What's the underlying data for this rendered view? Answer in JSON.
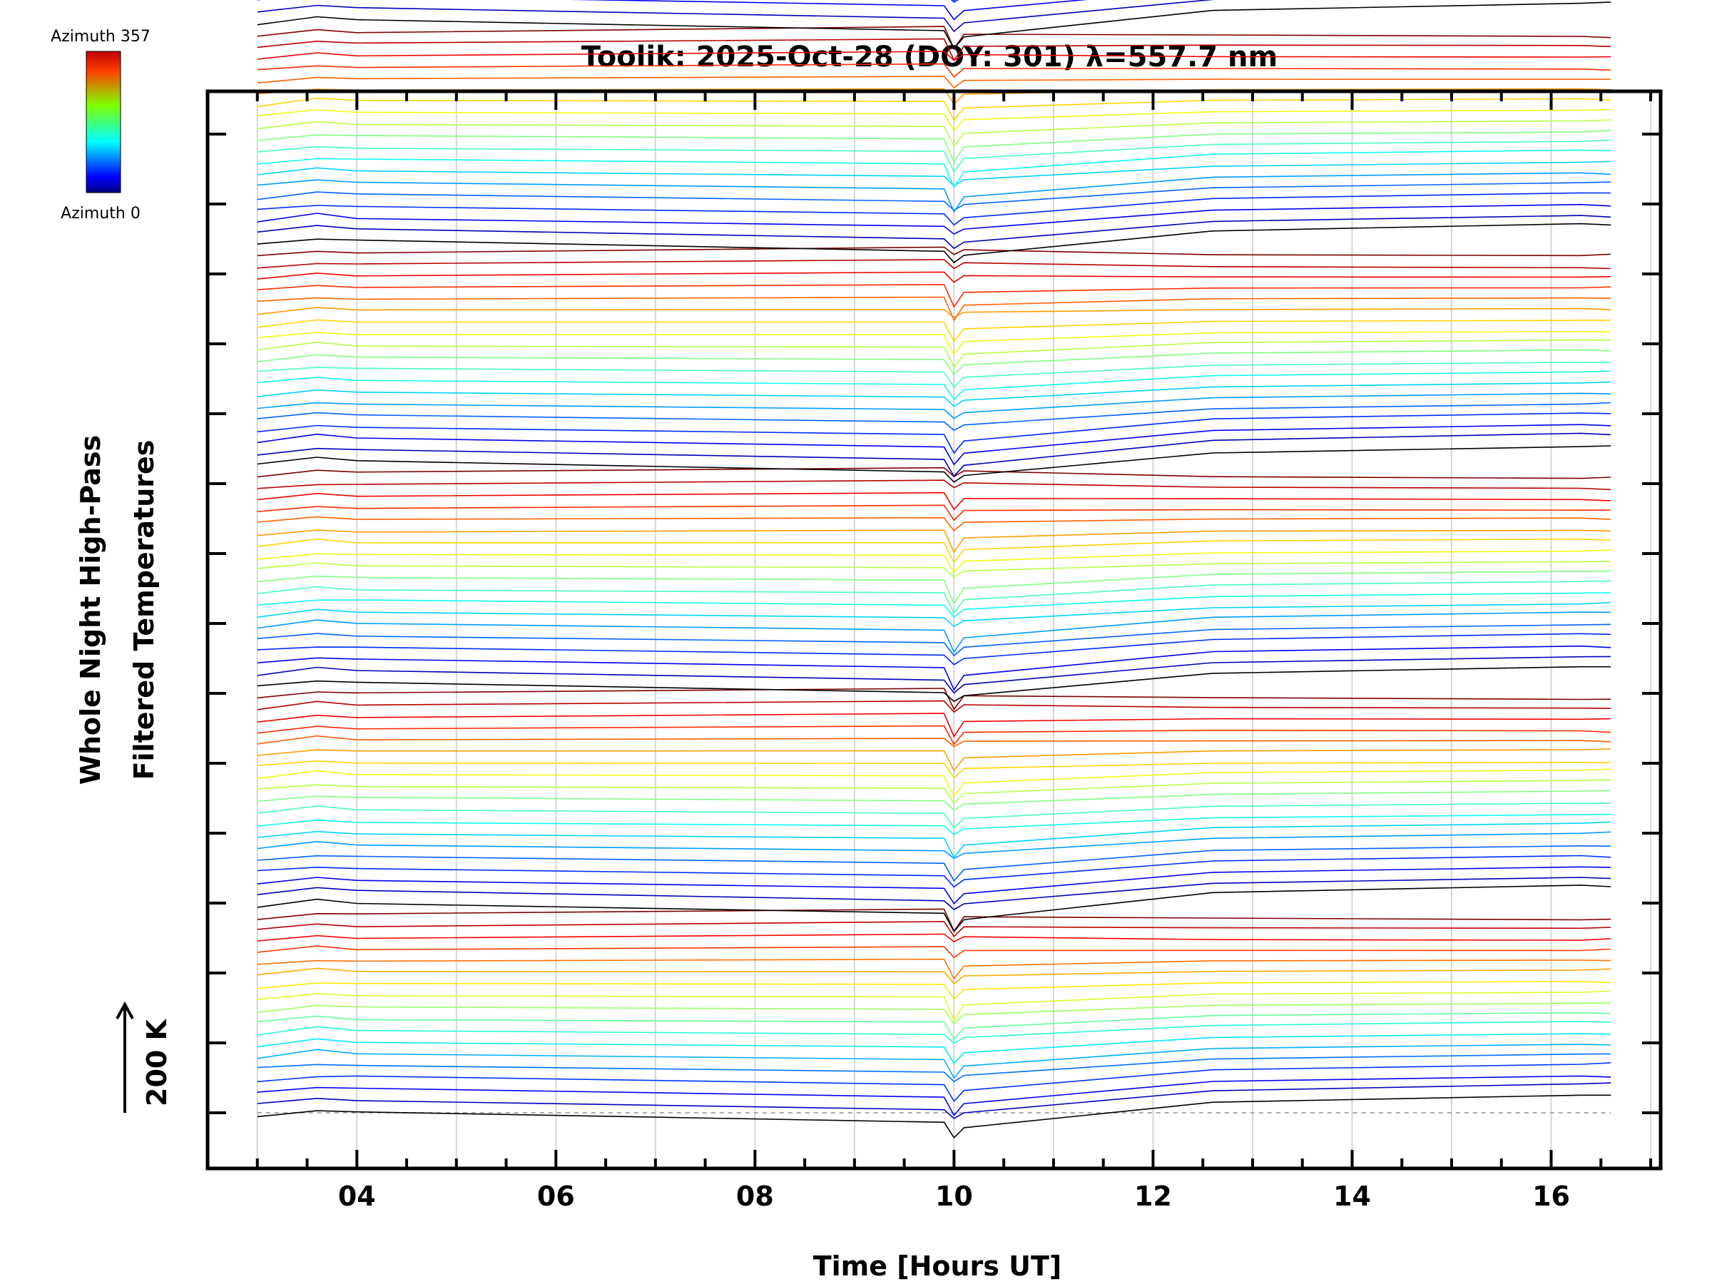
{
  "chart_data": {
    "type": "line",
    "title": "Toolik: 2025-Oct-28 (DOY: 301) λ=557.7 nm",
    "xlabel": "Time [Hours UT]",
    "ylabel_line1": "Whole Night High-Pass",
    "ylabel_line2": "Filtered Temperatures",
    "scale_label": "200 K",
    "xlim": [
      2.5,
      17.1
    ],
    "x_ticks": [
      4,
      6,
      8,
      10,
      12,
      14,
      16
    ],
    "x_tick_labels": [
      "04",
      "06",
      "08",
      "10",
      "12",
      "14",
      "16"
    ],
    "x_minor_step": 0.5,
    "colorbar": {
      "top_label": "Azimuth 357",
      "bottom_label": "Azimuth 0"
    },
    "times": [
      3.0,
      3.6,
      4.0,
      9.9,
      10.0,
      10.1,
      12.6,
      16.3,
      16.6
    ],
    "series_count": 132,
    "group_count": 7,
    "series_per_group": 19,
    "bottom_group_series": 18,
    "series_spacing_K": 22,
    "scale_bar_K": 200,
    "dip_at_hour": 10.0,
    "dip_depth_K": [
      14,
      45
    ],
    "end_trend_K": [
      -10,
      30
    ],
    "zero_line_y_K": 0
  }
}
